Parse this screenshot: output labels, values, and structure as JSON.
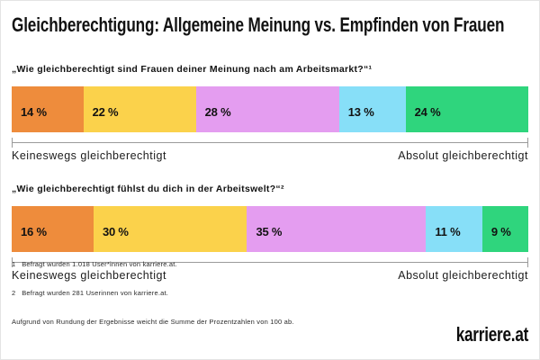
{
  "header": {
    "title": "Gleichberechtigung: Allgemeine Meinung vs. Empfinden von Frauen"
  },
  "chart_data": [
    {
      "type": "bar",
      "stacked": true,
      "orientation": "horizontal",
      "question": "„Wie gleichberechtigt sind Frauen deiner Meinung nach am Arbeitsmarkt?“¹",
      "unit": "%",
      "values": [
        14,
        22,
        28,
        13,
        24
      ],
      "labels": [
        "14 %",
        "22 %",
        "28 %",
        "13 %",
        "24 %"
      ],
      "colors": [
        "#EE8C3C",
        "#FBD24B",
        "#E49DF0",
        "#87DFF8",
        "#2FD57D"
      ],
      "axis_left_label": "Keineswegs gleichberechtigt",
      "axis_right_label": "Absolut gleichberechtigt"
    },
    {
      "type": "bar",
      "stacked": true,
      "orientation": "horizontal",
      "question": "„Wie gleichberechtigt fühlst du dich in der Arbeitswelt?“²",
      "unit": "%",
      "values": [
        16,
        30,
        35,
        11,
        9
      ],
      "labels": [
        "16 %",
        "30 %",
        "35 %",
        "11 %",
        "9 %"
      ],
      "colors": [
        "#EE8C3C",
        "#FBD24B",
        "#E49DF0",
        "#87DFF8",
        "#2FD57D"
      ],
      "axis_left_label": "Keineswegs gleichberechtigt",
      "axis_right_label": "Absolut gleichberechtigt"
    }
  ],
  "footnotes": [
    "1   Befragt wurden 1.018 User*innen von karriere.at.",
    "2   Befragt wurden 281 Userinnen von karriere.at.",
    "Aufgrund von Rundung der Ergebnisse weicht die Summe der Prozentzahlen von 100 ab."
  ],
  "brand": {
    "logo": "karriere.at"
  }
}
